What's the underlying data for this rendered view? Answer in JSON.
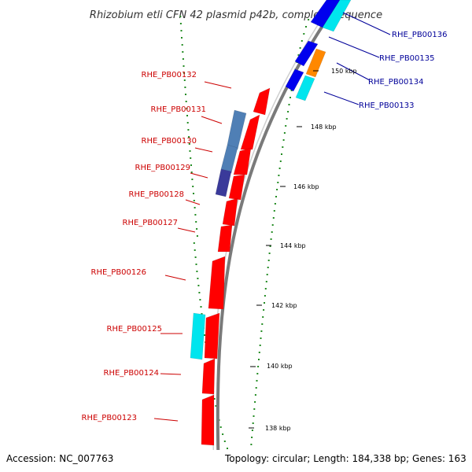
{
  "title": "Rhizobium etli CFN 42 plasmid p42b, complete sequence",
  "accession": "Accession: NC_007763",
  "summary": "Topology: circular; Length: 184,338 bp; Genes: 163",
  "colors": {
    "forward_label": "#cc0000",
    "reverse_label": "#000099",
    "cds_red": "#ff0000",
    "cds_blue": "#0000ee",
    "cds_cyan": "#00e5ee",
    "cds_orange": "#ff8800",
    "cds_steelblue": "#4f7fb5",
    "cds_purple": "#3a3a9a",
    "backbone": "#888888",
    "gc_dots": "#228b22"
  },
  "left_genes": [
    {
      "name": "RHE_PB00132"
    },
    {
      "name": "RHE_PB00131"
    },
    {
      "name": "RHE_PB00130"
    },
    {
      "name": "RHE_PB00129"
    },
    {
      "name": "RHE_PB00128"
    },
    {
      "name": "RHE_PB00127"
    },
    {
      "name": "RHE_PB00126"
    },
    {
      "name": "RHE_PB00125"
    },
    {
      "name": "RHE_PB00124"
    },
    {
      "name": "RHE_PB00123"
    }
  ],
  "right_genes": [
    {
      "name": "RHE_PB00136"
    },
    {
      "name": "RHE_PB00135"
    },
    {
      "name": "RHE_PB00134"
    },
    {
      "name": "RHE_PB00133"
    }
  ],
  "ticks": [
    {
      "label": "150 kbp"
    },
    {
      "label": "148 kbp"
    },
    {
      "label": "146 kbp"
    },
    {
      "label": "144 kbp"
    },
    {
      "label": "142 kbp"
    },
    {
      "label": "140 kbp"
    },
    {
      "label": "138 kbp"
    }
  ]
}
